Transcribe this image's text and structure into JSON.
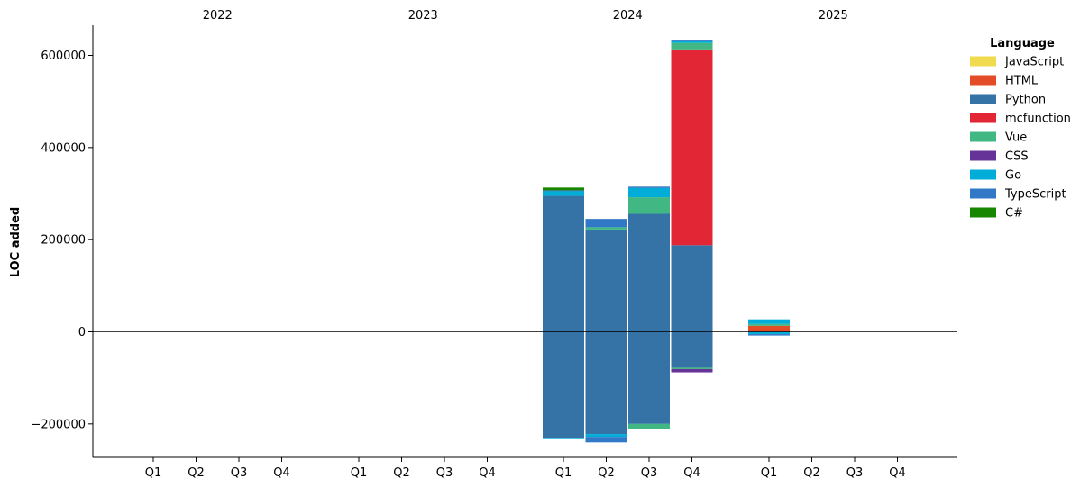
{
  "chart_data": {
    "type": "bar",
    "stacked": true,
    "ylabel": "LOC added",
    "ylim": [
      -270000,
      665000
    ],
    "yticks": [
      -200000,
      0,
      200000,
      400000,
      600000
    ],
    "ytick_labels": [
      "−200000",
      "0",
      "200000",
      "400000",
      "600000"
    ],
    "years": [
      "2022",
      "2023",
      "2024",
      "2025"
    ],
    "quarters": [
      "Q1",
      "Q2",
      "Q3",
      "Q4"
    ],
    "zero_line": true,
    "legend": {
      "title": "Language",
      "position": "right",
      "entries": [
        {
          "name": "JavaScript",
          "color": "#f0db4f"
        },
        {
          "name": "HTML",
          "color": "#e34c26"
        },
        {
          "name": "Python",
          "color": "#3572a5"
        },
        {
          "name": "mcfunction",
          "color": "#e32636"
        },
        {
          "name": "Vue",
          "color": "#41b883"
        },
        {
          "name": "CSS",
          "color": "#663399"
        },
        {
          "name": "Go",
          "color": "#00add8"
        },
        {
          "name": "TypeScript",
          "color": "#3178c6"
        },
        {
          "name": "C#",
          "color": "#178600"
        }
      ]
    },
    "bars": [
      {
        "year": "2024",
        "quarter": "Q1",
        "positive": [
          {
            "series": "Python",
            "value": 295000
          },
          {
            "series": "Go",
            "value": 10000
          },
          {
            "series": "TypeScript",
            "value": 2000
          },
          {
            "series": "C#",
            "value": 6000
          }
        ],
        "negative": [
          {
            "series": "Python",
            "value": -231000
          },
          {
            "series": "Go",
            "value": -2000
          }
        ]
      },
      {
        "year": "2024",
        "quarter": "Q2",
        "positive": [
          {
            "series": "Python",
            "value": 222000
          },
          {
            "series": "Vue",
            "value": 5000
          },
          {
            "series": "TypeScript",
            "value": 18000
          }
        ],
        "negative": [
          {
            "series": "Python",
            "value": -222000
          },
          {
            "series": "Go",
            "value": -6000
          },
          {
            "series": "TypeScript",
            "value": -12000
          }
        ]
      },
      {
        "year": "2024",
        "quarter": "Q3",
        "positive": [
          {
            "series": "Python",
            "value": 256000
          },
          {
            "series": "Vue",
            "value": 36000
          },
          {
            "series": "Go",
            "value": 20000
          },
          {
            "series": "TypeScript",
            "value": 3000
          }
        ],
        "negative": [
          {
            "series": "Python",
            "value": -200000
          },
          {
            "series": "Vue",
            "value": -12000
          }
        ]
      },
      {
        "year": "2024",
        "quarter": "Q4",
        "positive": [
          {
            "series": "Python",
            "value": 188000
          },
          {
            "series": "mcfunction",
            "value": 425000
          },
          {
            "series": "Vue",
            "value": 14000
          },
          {
            "series": "Go",
            "value": 4000
          },
          {
            "series": "TypeScript",
            "value": 3000
          }
        ],
        "negative": [
          {
            "series": "Python",
            "value": -78000
          },
          {
            "series": "Vue",
            "value": -3000
          },
          {
            "series": "CSS",
            "value": -7000
          }
        ]
      },
      {
        "year": "2025",
        "quarter": "Q1",
        "positive": [
          {
            "series": "HTML",
            "value": 13000
          },
          {
            "series": "Vue",
            "value": 4000
          },
          {
            "series": "Go",
            "value": 10000
          }
        ],
        "negative": [
          {
            "series": "Go",
            "value": -5000
          },
          {
            "series": "TypeScript",
            "value": -3000
          }
        ]
      }
    ]
  }
}
